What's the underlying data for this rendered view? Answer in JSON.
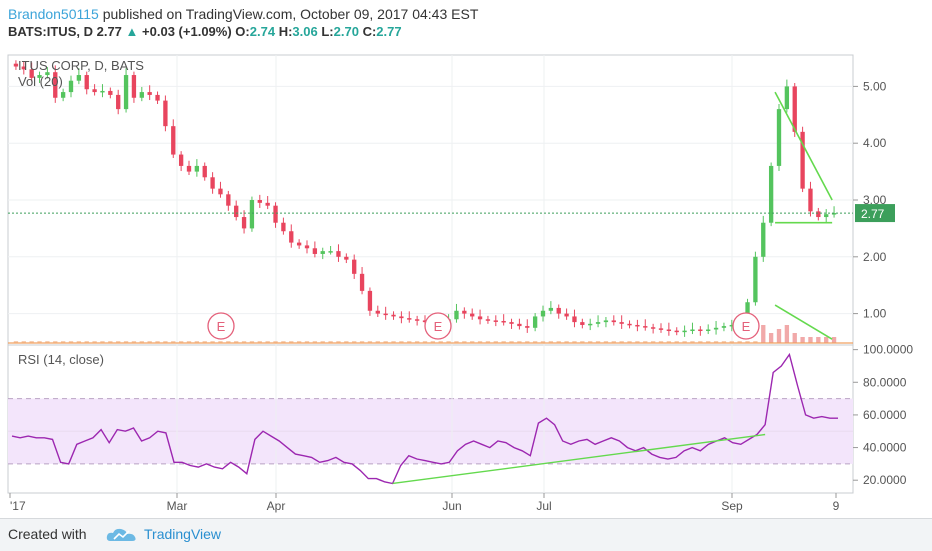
{
  "header": {
    "author": "Brandon50115",
    "published": "published on TradingView.com, October 09, 2017 04:43 EST",
    "symbol": "BATS:ITUS, D",
    "last": "2.77",
    "change": "+0.03 (+1.09%)",
    "o_label": "O:",
    "o_val": "2.74",
    "h_label": "H:",
    "h_val": "3.06",
    "l_label": "L:",
    "l_val": "2.70",
    "c_label": "C:",
    "c_val": "2.77"
  },
  "footer": {
    "created_with": "Created with",
    "brand": "TradingView"
  },
  "colors": {
    "up": "#26a69a",
    "down": "#e8455e",
    "upbar": "#54c45e",
    "rsi": "#9c27b0",
    "trend": "#64d94e",
    "band": "#f3e5fb",
    "price_tag": "#3c9f5b"
  },
  "chart_data": [
    {
      "type": "candlestick",
      "title": "ITUS CORP, D, BATS",
      "indicator_label": "Vol (20)",
      "last_price_label": "2.77",
      "y_ticks": [
        "5.00",
        "4.00",
        "3.00",
        "2.00",
        "1.00"
      ],
      "ylim": [
        0.5,
        5.5
      ],
      "x_ticks": [
        "'17",
        "Mar",
        "Apr",
        "Jun",
        "Jul",
        "Sep",
        "9"
      ],
      "earnings_markers": [
        "E",
        "E",
        "E"
      ],
      "close_series": [
        5.35,
        5.3,
        5.15,
        5.2,
        5.25,
        4.8,
        4.9,
        5.1,
        5.2,
        4.95,
        4.9,
        4.92,
        4.85,
        4.6,
        5.2,
        4.8,
        4.9,
        4.85,
        4.75,
        4.3,
        3.8,
        3.6,
        3.5,
        3.6,
        3.4,
        3.2,
        3.1,
        2.9,
        2.7,
        2.5,
        3.0,
        2.95,
        2.9,
        2.6,
        2.45,
        2.25,
        2.2,
        2.15,
        2.05,
        2.1,
        2.1,
        2.0,
        1.95,
        1.7,
        1.4,
        1.05,
        1.0,
        0.98,
        0.95,
        0.92,
        0.9,
        0.88,
        0.85,
        0.82,
        0.83,
        0.9,
        1.05,
        1.0,
        0.95,
        0.9,
        0.88,
        0.87,
        0.85,
        0.82,
        0.78,
        0.75,
        0.95,
        1.05,
        1.1,
        1.0,
        0.95,
        0.85,
        0.8,
        0.82,
        0.85,
        0.88,
        0.85,
        0.82,
        0.8,
        0.78,
        0.76,
        0.74,
        0.72,
        0.7,
        0.68,
        0.7,
        0.72,
        0.7,
        0.72,
        0.75,
        0.78,
        0.8,
        0.78,
        1.2,
        2.0,
        2.6,
        3.6,
        4.6,
        5.0,
        4.2,
        3.2,
        2.8,
        2.7,
        2.75,
        2.77
      ],
      "trendlines": [
        {
          "from": [
            4.9,
            0.0
          ],
          "to": [
            3.0,
            1.0
          ]
        },
        {
          "from": [
            2.6,
            0.0
          ],
          "to": [
            2.6,
            1.0
          ]
        },
        {
          "from": [
            1.15,
            0.0
          ],
          "to": [
            0.55,
            1.0
          ]
        }
      ]
    },
    {
      "type": "line",
      "title": "RSI (14, close)",
      "y_ticks": [
        "100.0000",
        "80.0000",
        "60.0000",
        "40.0000",
        "20.0000"
      ],
      "ylim": [
        14,
        101
      ],
      "band": [
        30,
        70
      ],
      "values": [
        47,
        46,
        47,
        46,
        46,
        45,
        31,
        30,
        42,
        44,
        46,
        51,
        43,
        51,
        50,
        52,
        44,
        46,
        50,
        49,
        31,
        31,
        29,
        28,
        30,
        28,
        27,
        31,
        28,
        24,
        45,
        50,
        47,
        44,
        40,
        36,
        35,
        34,
        31,
        32,
        34,
        31,
        30,
        26,
        21,
        21,
        19,
        18,
        29,
        35,
        33,
        32,
        31,
        30,
        31,
        38,
        42,
        44,
        42,
        40,
        44,
        43,
        40,
        38,
        35,
        55,
        58,
        54,
        44,
        42,
        44,
        45,
        42,
        44,
        46,
        44,
        40,
        38,
        40,
        36,
        34,
        33,
        34,
        38,
        40,
        38,
        42,
        44,
        46,
        43,
        42,
        45,
        48,
        54,
        86,
        90,
        97,
        78,
        60,
        58,
        59,
        58,
        58
      ],
      "trendlines": [
        {
          "from": [
            18,
            0.0
          ],
          "to": [
            48,
            1.0
          ]
        }
      ]
    }
  ]
}
